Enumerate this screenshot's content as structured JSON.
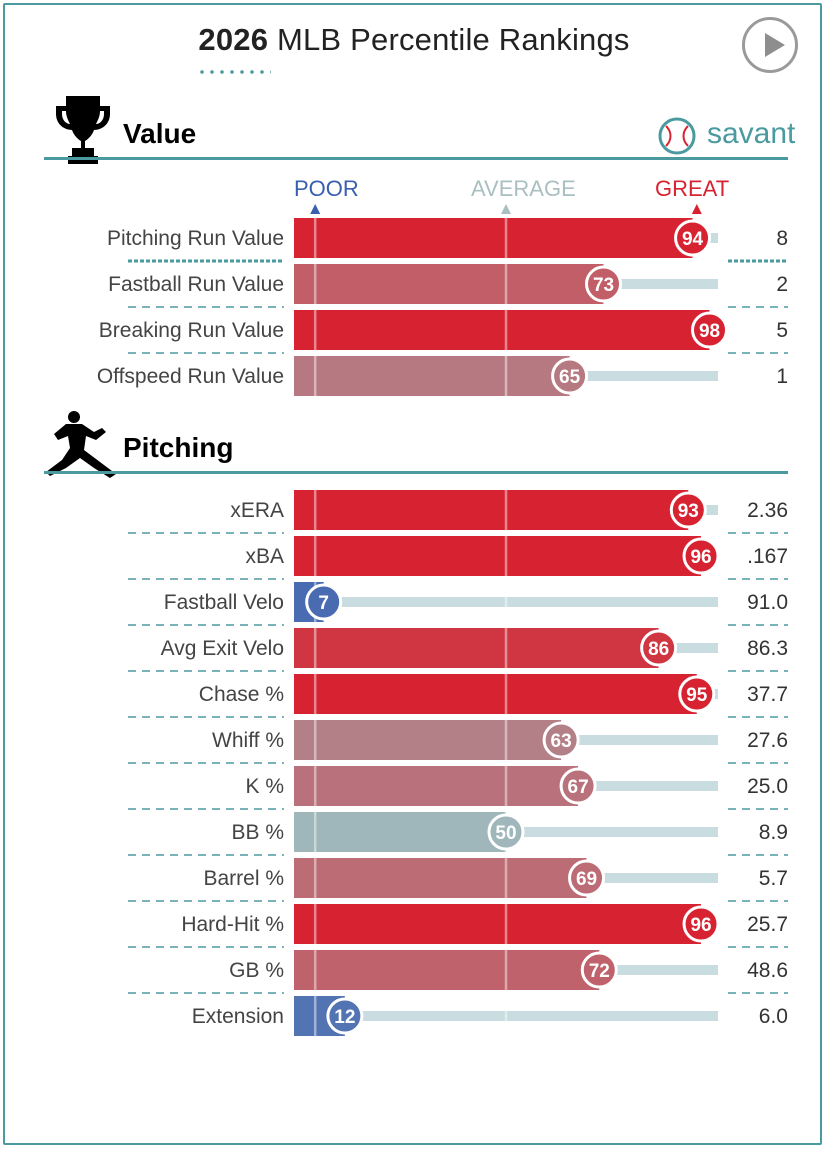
{
  "header": {
    "title_year": "2026",
    "title_rest": "MLB Percentile Rankings",
    "brand": "savant"
  },
  "sections": {
    "value_title": "Value",
    "pitching_title": "Pitching"
  },
  "scale_labels": {
    "poor": "POOR",
    "average": "AVERAGE",
    "great": "GREAT"
  },
  "colors": {
    "accent": "#4a9aa0",
    "poor": "#3a5fb0",
    "average": "#9fb7bb",
    "great": "#d72331",
    "track": "#c9dcdf"
  },
  "chart_data": [
    {
      "type": "bar",
      "title": "Value",
      "xlim": [
        0,
        100
      ],
      "categories": [
        "Pitching Run Value",
        "Fastball Run Value",
        "Breaking Run Value",
        "Offspeed Run Value"
      ],
      "values": [
        94,
        73,
        98,
        65
      ],
      "stat_values": [
        "8",
        "2",
        "5",
        "1"
      ]
    },
    {
      "type": "bar",
      "title": "Pitching",
      "xlim": [
        0,
        100
      ],
      "categories": [
        "xERA",
        "xBA",
        "Fastball Velo",
        "Avg Exit Velo",
        "Chase %",
        "Whiff %",
        "K %",
        "BB %",
        "Barrel %",
        "Hard-Hit %",
        "GB %",
        "Extension"
      ],
      "values": [
        93,
        96,
        7,
        86,
        95,
        63,
        67,
        50,
        69,
        96,
        72,
        12
      ],
      "stat_values": [
        "2.36",
        ".167",
        "91.0",
        "86.3",
        "37.7",
        "27.6",
        "25.0",
        "8.9",
        "5.7",
        "25.7",
        "48.6",
        "6.0"
      ]
    }
  ]
}
